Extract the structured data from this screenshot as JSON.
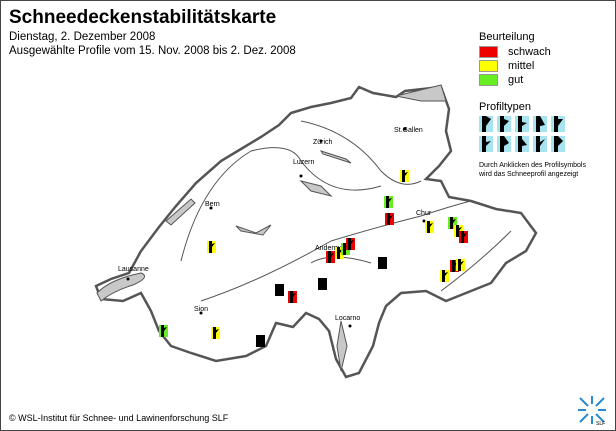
{
  "title": "Schneedeckenstabilitätskarte",
  "date": "Dienstag, 2. Dezember 2008",
  "range": "Ausgewählte Profile vom 15. Nov. 2008 bis 2. Dez. 2008",
  "legend": {
    "heading": "Beurteilung",
    "items": [
      {
        "label": "schwach",
        "color": "#ee0000"
      },
      {
        "label": "mittel",
        "color": "#ffff00"
      },
      {
        "label": "gut",
        "color": "#66ee22"
      }
    ]
  },
  "profile_types": {
    "heading": "Profiltypen",
    "count": 10,
    "note_line1": "Durch Anklicken des Profilsymbols",
    "note_line2": "wird das Schneeprofil angezeigt"
  },
  "cities": {
    "zurich": "Zürich",
    "stgallen": "St.Gallen",
    "luzern": "Luzern",
    "bern": "Bern",
    "chur": "Chur",
    "andermatt": "Andermatt",
    "lausanne": "Lausanne",
    "sion": "Sion",
    "locarno": "Locarno"
  },
  "markers": [
    "mittel",
    "gut",
    "mittel",
    "none",
    "none",
    "schwach",
    "none",
    "schwach",
    "mittel",
    "gut",
    "schwach",
    "none",
    "schwach",
    "gut",
    "mittel",
    "mittel",
    "gut",
    "mittel",
    "schwach",
    "mittel",
    "schwach",
    "mittel"
  ],
  "copyright": "© WSL-Institut für Schnee- und Lawinenforschung SLF",
  "logo_text": "SLF",
  "colors": {
    "lake": "#c8c8c8",
    "border": "#555555",
    "profile_bg": "#a8e4f0"
  }
}
